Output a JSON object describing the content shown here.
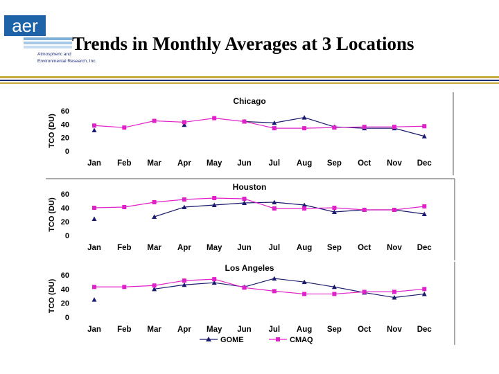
{
  "slide": {
    "title": "Trends in Monthly Averages at 3 Locations",
    "logo": {
      "mark": "aer",
      "line1": "Atmospheric and",
      "line2": "Environmental Research, Inc."
    }
  },
  "colors": {
    "gome": "#1a1a6e",
    "cmaq": "#e020c8",
    "logo_blue": "#1e63a8",
    "rule_gold": "#c9a93a",
    "rule_navy": "#1e2d7a"
  },
  "chart_data": [
    {
      "type": "line",
      "title": "Chicago",
      "ylabel": "TCO (DU)",
      "categories": [
        "Jan",
        "Feb",
        "Mar",
        "Apr",
        "May",
        "Jun",
        "Jul",
        "Aug",
        "Sep",
        "Oct",
        "Nov",
        "Dec"
      ],
      "ylim": [
        0,
        60
      ],
      "yticks": [
        "0",
        "20",
        "40",
        "60"
      ],
      "series": [
        {
          "name": "GOME",
          "marker": "triangle",
          "values": [
            31,
            null,
            null,
            39,
            null,
            44,
            42,
            50,
            36,
            34,
            34,
            22
          ]
        },
        {
          "name": "CMAQ",
          "marker": "square",
          "values": [
            38,
            35,
            45,
            43,
            49,
            44,
            34,
            34,
            35,
            36,
            36,
            37
          ]
        }
      ]
    },
    {
      "type": "line",
      "title": "Houston",
      "ylabel": "TCO (DU)",
      "categories": [
        "Jan",
        "Feb",
        "Mar",
        "Apr",
        "May",
        "Jun",
        "Jul",
        "Aug",
        "Sep",
        "Oct",
        "Nov",
        "Dec"
      ],
      "ylim": [
        0,
        60
      ],
      "yticks": [
        "0",
        "20",
        "40",
        "60"
      ],
      "series": [
        {
          "name": "GOME",
          "marker": "triangle",
          "values": [
            24,
            null,
            27,
            41,
            44,
            47,
            48,
            44,
            34,
            37,
            37,
            31
          ]
        },
        {
          "name": "CMAQ",
          "marker": "square",
          "values": [
            40,
            41,
            48,
            52,
            54,
            53,
            39,
            39,
            40,
            37,
            37,
            42
          ]
        }
      ]
    },
    {
      "type": "line",
      "title": "Los Angeles",
      "ylabel": "TCO (DU)",
      "categories": [
        "Jan",
        "Feb",
        "Mar",
        "Apr",
        "May",
        "Jun",
        "Jul",
        "Aug",
        "Sep",
        "Oct",
        "Nov",
        "Dec"
      ],
      "ylim": [
        0,
        60
      ],
      "yticks": [
        "0",
        "20",
        "40",
        "60"
      ],
      "series": [
        {
          "name": "GOME",
          "marker": "triangle",
          "values": [
            25,
            null,
            40,
            46,
            49,
            43,
            55,
            50,
            43,
            35,
            28,
            33
          ]
        },
        {
          "name": "CMAQ",
          "marker": "square",
          "values": [
            43,
            43,
            45,
            52,
            54,
            42,
            37,
            33,
            33,
            36,
            36,
            40
          ]
        }
      ]
    }
  ],
  "legend": {
    "gome": "GOME",
    "cmaq": "CMAQ"
  }
}
